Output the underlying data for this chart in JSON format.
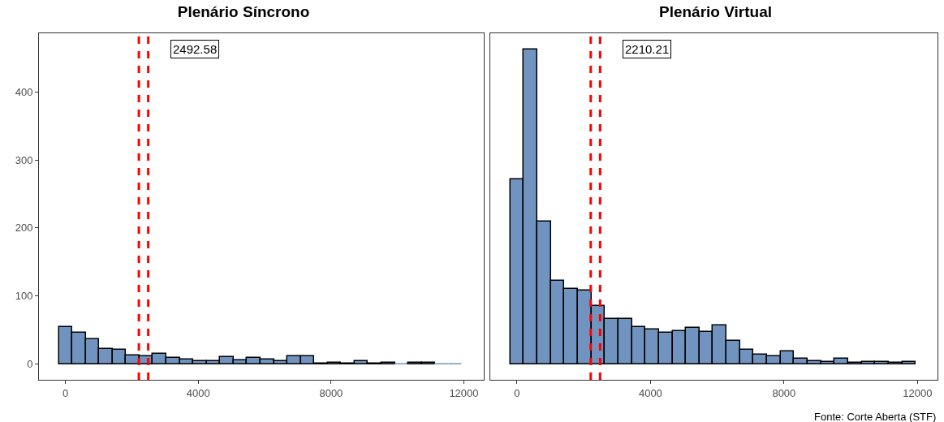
{
  "chart_data": [
    {
      "type": "histogram",
      "title": "Plenário Síncrono",
      "color": "#7094bf",
      "bins": [
        -200,
        205,
        610,
        1015,
        1420,
        1825,
        2230,
        2635,
        3040,
        3445,
        3850,
        4255,
        4660,
        5065,
        5470,
        5875,
        6280,
        6685,
        7090,
        7495,
        7900,
        8305,
        8710,
        9115,
        9520,
        9925,
        10330,
        10735,
        11140,
        11545,
        11950
      ],
      "values": [
        55,
        46,
        37,
        22,
        21,
        13,
        11,
        15,
        9,
        7,
        4,
        5,
        10,
        6,
        9,
        7,
        5,
        12,
        11,
        1,
        2,
        1,
        4,
        1,
        2,
        0,
        2,
        2,
        0,
        0
      ],
      "xlim": [
        -800,
        12600
      ],
      "xticks": [
        0,
        4000,
        8000,
        12000
      ],
      "ylim": [
        -23,
        486
      ],
      "yticks": [
        0,
        100,
        200,
        300,
        400
      ],
      "grid": false,
      "ref_lines": [
        {
          "axis": "x",
          "value": 2210.21,
          "color": "#ff0000",
          "line_style": "dashed"
        },
        {
          "axis": "x",
          "value": 2492.58,
          "color": "#ff0000",
          "line_style": "dashed"
        }
      ],
      "annotations": [
        "2492.58"
      ]
    },
    {
      "type": "histogram",
      "title": "Plenário Virtual",
      "color": "#7094bf",
      "bins": [
        -200,
        205,
        610,
        1015,
        1420,
        1825,
        2230,
        2635,
        3040,
        3445,
        3850,
        4255,
        4660,
        5065,
        5470,
        5875,
        6280,
        6685,
        7090,
        7495,
        7900,
        8305,
        8710,
        9115,
        9520,
        9925,
        10330,
        10735,
        11140,
        11545,
        11950
      ],
      "values": [
        272,
        462,
        210,
        122,
        111,
        108,
        85,
        66,
        66,
        54,
        51,
        46,
        48,
        53,
        47,
        57,
        34,
        21,
        14,
        11,
        19,
        8,
        4,
        3,
        8,
        2,
        3,
        3,
        2,
        3
      ],
      "xlim": [
        -800,
        12600
      ],
      "xticks": [
        0,
        4000,
        8000,
        12000
      ],
      "ylim": [
        -23,
        486
      ],
      "yticks": [
        0,
        100,
        200,
        300,
        400
      ],
      "grid": false,
      "tick_labels": "x",
      "ref_lines": [
        {
          "axis": "x",
          "value": 2210.21,
          "color": "#ff0000",
          "line_style": "dashed"
        },
        {
          "axis": "x",
          "value": 2492.58,
          "color": "#ff0000",
          "line_style": "dashed"
        }
      ],
      "annotations": [
        "2210.21",
        "Fonte: Corte Aberta (STF)"
      ]
    }
  ]
}
